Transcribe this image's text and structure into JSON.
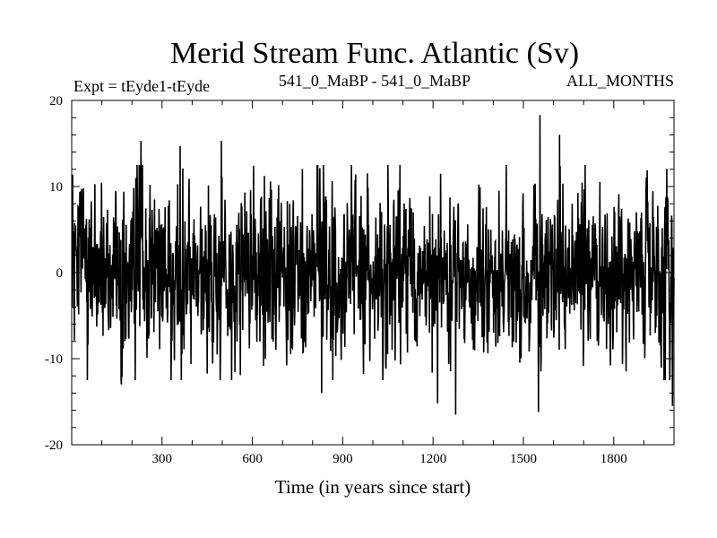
{
  "chart_data": {
    "type": "line",
    "title": "Merid Stream Func. Atlantic (Sv)",
    "header_left": "Expt = tEyde1-tEyde",
    "header_center": "541_0_MaBP - 541_0_MaBP",
    "header_right": "ALL_MONTHS",
    "xlabel": "Time (in years since start)",
    "ylabel": "",
    "xlim": [
      0,
      2000
    ],
    "ylim": [
      -20,
      20
    ],
    "x_ticks": [
      300,
      600,
      900,
      1200,
      1500,
      1800
    ],
    "x_tick_labels": [
      "300",
      "600",
      "900",
      "1200",
      "1500",
      "1800"
    ],
    "y_ticks": [
      20,
      10,
      0,
      -10,
      -20
    ],
    "y_tick_labels": [
      "20",
      "10",
      "0",
      "-10",
      "-20"
    ],
    "grid": false,
    "series_color": "#000000",
    "series": [
      {
        "name": "",
        "x_start": 1,
        "x_step": 1,
        "stats_note": "annual values, approx. range -16.5 to 18.3",
        "values": []
      }
    ],
    "notable_points": [
      {
        "x": 230,
        "y": 15.3
      },
      {
        "x": 360,
        "y": 14.7
      },
      {
        "x": 497,
        "y": 15.3
      },
      {
        "x": 1555,
        "y": 18.3
      },
      {
        "x": 1620,
        "y": 16.0
      },
      {
        "x": 165,
        "y": -13.0
      },
      {
        "x": 830,
        "y": -14.0
      },
      {
        "x": 1215,
        "y": -15.2
      },
      {
        "x": 1275,
        "y": -16.5
      },
      {
        "x": 1550,
        "y": -16.2
      },
      {
        "x": 1995,
        "y": -15.5
      }
    ]
  }
}
